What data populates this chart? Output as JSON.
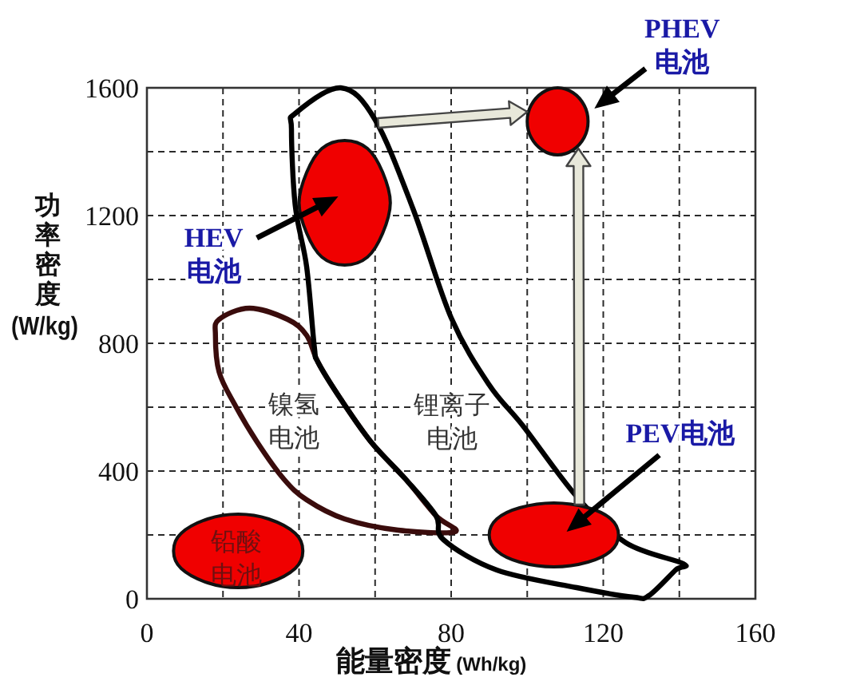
{
  "chart_data": {
    "type": "area",
    "xlabel": "能量密度 (Wh/kg)",
    "ylabel": "功率密度 (W/kg)",
    "xlim": [
      0,
      160
    ],
    "xticks": [
      0,
      {
        "value": 20,
        "label": null
      },
      40,
      {
        "value": 60,
        "label": null
      },
      80,
      {
        "value": 100,
        "label": null
      },
      120,
      {
        "value": 140,
        "label": null
      },
      160
    ],
    "ylim": [
      0,
      1600
    ],
    "yticks": [
      0,
      {
        "value": 200,
        "label": null
      },
      400,
      {
        "value": 600,
        "label": null
      },
      800,
      {
        "value": 1000,
        "label": null
      },
      1200,
      {
        "value": 1400,
        "label": null
      },
      1600
    ],
    "grid": true,
    "annotations": [
      "镍氢电池",
      "锂离子电池"
    ],
    "series": [
      {
        "name": "铅酸电池",
        "color": "#f00000",
        "x": [
          41,
          39,
          32,
          24,
          16,
          9,
          7,
          9,
          16,
          24,
          32,
          39,
          41
        ],
        "values": [
          150,
          205,
          250,
          265,
          250,
          205,
          150,
          95,
          50,
          35,
          50,
          95,
          150
        ]
      },
      {
        "name": "HEV 电池",
        "color": "#f00000",
        "x": [
          64,
          62,
          58,
          52,
          46,
          42,
          40,
          42,
          46,
          52,
          58,
          62,
          64
        ],
        "values": [
          1240,
          1335,
          1410,
          1435,
          1410,
          1335,
          1240,
          1145,
          1070,
          1045,
          1070,
          1145,
          1240
        ]
      },
      {
        "name": "PHEV 电池",
        "color": "#f00000",
        "x": [
          116,
          115,
          112,
          108,
          104,
          101,
          100,
          101,
          104,
          108,
          112,
          115,
          116
        ],
        "values": [
          1495,
          1545,
          1585,
          1600,
          1585,
          1545,
          1495,
          1445,
          1405,
          1390,
          1405,
          1445,
          1495
        ]
      },
      {
        "name": "PEV电池",
        "color": "#f00000",
        "x": [
          124,
          122,
          116,
          107,
          98,
          92,
          90,
          92,
          98,
          107,
          116,
          122,
          124
        ],
        "values": [
          200,
          250,
          285,
          300,
          285,
          250,
          200,
          150,
          115,
          100,
          115,
          150,
          200
        ]
      }
    ]
  }
}
